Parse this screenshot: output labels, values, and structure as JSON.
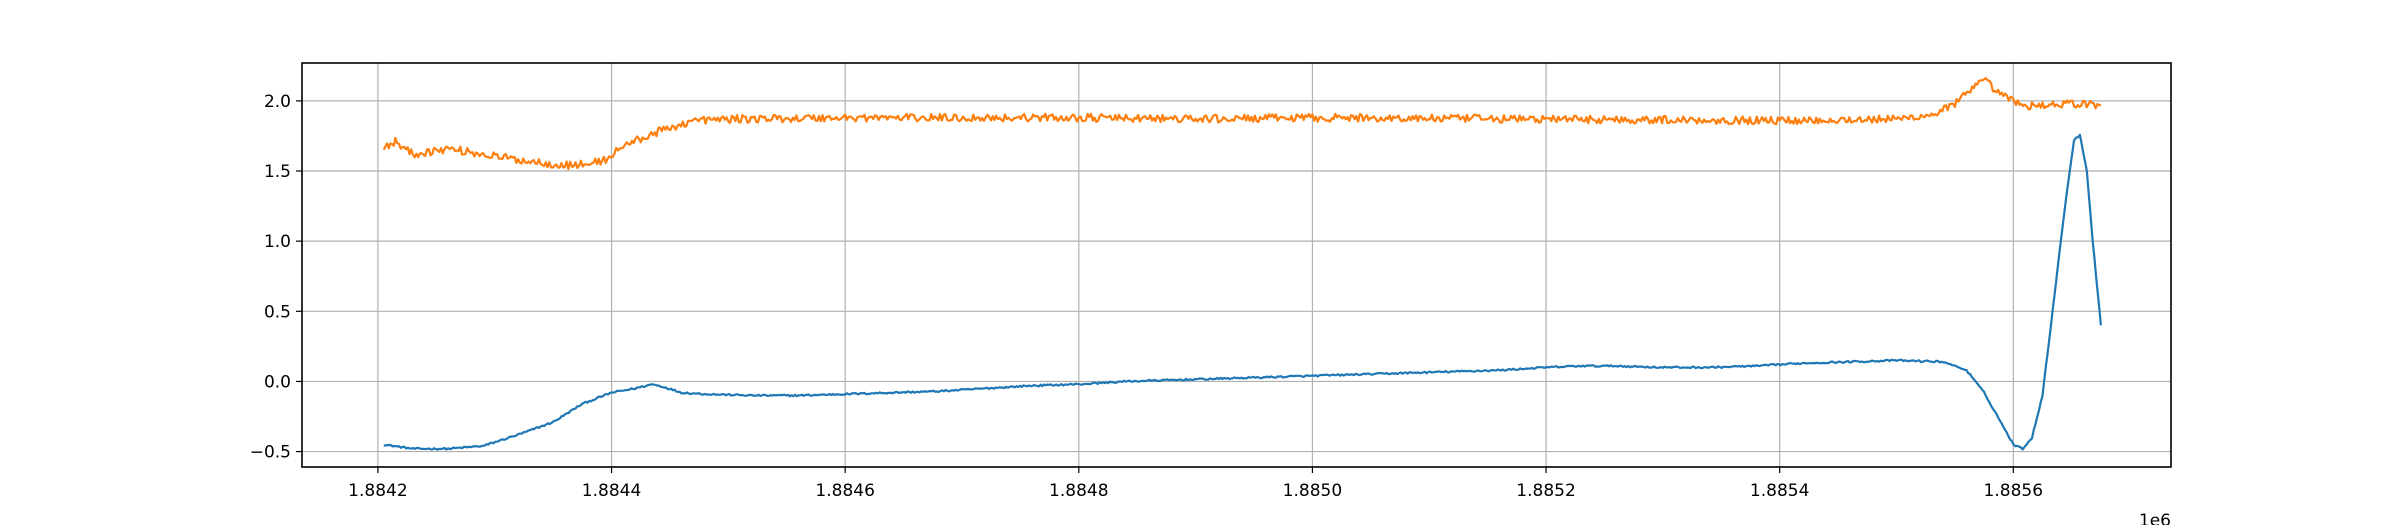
{
  "chart_data": {
    "type": "line",
    "title": "",
    "xlabel": "",
    "ylabel": "",
    "x_offset_label": "1e6",
    "xlim": [
      1884135,
      1885735
    ],
    "ylim": [
      -0.61,
      2.27
    ],
    "grid": true,
    "legend": "none",
    "x_ticks": [
      1884200,
      1884400,
      1884600,
      1884800,
      1885000,
      1885200,
      1885400,
      1885600
    ],
    "x_tick_labels": [
      "1.8842",
      "1.8844",
      "1.8846",
      "1.8848",
      "1.8850",
      "1.8852",
      "1.8854",
      "1.8856"
    ],
    "y_ticks": [
      -0.5,
      0.0,
      0.5,
      1.0,
      1.5,
      2.0
    ],
    "y_tick_labels": [
      "−0.5",
      "0.0",
      "0.5",
      "1.0",
      "1.5",
      "2.0"
    ],
    "series": [
      {
        "color": "#1f77b4",
        "noise": 0.006,
        "points": [
          [
            1884205,
            -0.45
          ],
          [
            1884230,
            -0.48
          ],
          [
            1884260,
            -0.48
          ],
          [
            1884290,
            -0.46
          ],
          [
            1884320,
            -0.38
          ],
          [
            1884350,
            -0.29
          ],
          [
            1884375,
            -0.16
          ],
          [
            1884400,
            -0.08
          ],
          [
            1884420,
            -0.05
          ],
          [
            1884435,
            -0.02
          ],
          [
            1884445,
            -0.04
          ],
          [
            1884460,
            -0.08
          ],
          [
            1884480,
            -0.09
          ],
          [
            1884520,
            -0.1
          ],
          [
            1884560,
            -0.1
          ],
          [
            1884600,
            -0.09
          ],
          [
            1884640,
            -0.08
          ],
          [
            1884680,
            -0.07
          ],
          [
            1884720,
            -0.05
          ],
          [
            1884760,
            -0.03
          ],
          [
            1884800,
            -0.02
          ],
          [
            1884840,
            0.0
          ],
          [
            1884880,
            0.01
          ],
          [
            1884920,
            0.02
          ],
          [
            1884960,
            0.03
          ],
          [
            1885000,
            0.04
          ],
          [
            1885040,
            0.05
          ],
          [
            1885080,
            0.06
          ],
          [
            1885120,
            0.07
          ],
          [
            1885160,
            0.08
          ],
          [
            1885200,
            0.1
          ],
          [
            1885230,
            0.11
          ],
          [
            1885260,
            0.11
          ],
          [
            1885300,
            0.1
          ],
          [
            1885340,
            0.1
          ],
          [
            1885380,
            0.11
          ],
          [
            1885420,
            0.13
          ],
          [
            1885460,
            0.14
          ],
          [
            1885500,
            0.15
          ],
          [
            1885540,
            0.14
          ],
          [
            1885560,
            0.08
          ],
          [
            1885575,
            -0.08
          ],
          [
            1885590,
            -0.3
          ],
          [
            1885600,
            -0.45
          ],
          [
            1885608,
            -0.48
          ],
          [
            1885616,
            -0.4
          ],
          [
            1885625,
            -0.1
          ],
          [
            1885635,
            0.6
          ],
          [
            1885645,
            1.3
          ],
          [
            1885652,
            1.72
          ],
          [
            1885657,
            1.76
          ],
          [
            1885663,
            1.5
          ],
          [
            1885668,
            1.0
          ],
          [
            1885675,
            0.4
          ]
        ]
      },
      {
        "color": "#ff7f0e",
        "noise": 0.028,
        "points": [
          [
            1884205,
            1.67
          ],
          [
            1884215,
            1.71
          ],
          [
            1884230,
            1.62
          ],
          [
            1884260,
            1.66
          ],
          [
            1884290,
            1.62
          ],
          [
            1884320,
            1.58
          ],
          [
            1884360,
            1.54
          ],
          [
            1884380,
            1.55
          ],
          [
            1884395,
            1.58
          ],
          [
            1884410,
            1.68
          ],
          [
            1884440,
            1.78
          ],
          [
            1884470,
            1.86
          ],
          [
            1884500,
            1.87
          ],
          [
            1884600,
            1.88
          ],
          [
            1884800,
            1.88
          ],
          [
            1884900,
            1.87
          ],
          [
            1885000,
            1.88
          ],
          [
            1885200,
            1.87
          ],
          [
            1885400,
            1.86
          ],
          [
            1885500,
            1.87
          ],
          [
            1885530,
            1.9
          ],
          [
            1885550,
            1.98
          ],
          [
            1885575,
            2.15
          ],
          [
            1885590,
            2.04
          ],
          [
            1885610,
            1.96
          ],
          [
            1885640,
            1.98
          ],
          [
            1885675,
            1.97
          ]
        ]
      }
    ]
  }
}
